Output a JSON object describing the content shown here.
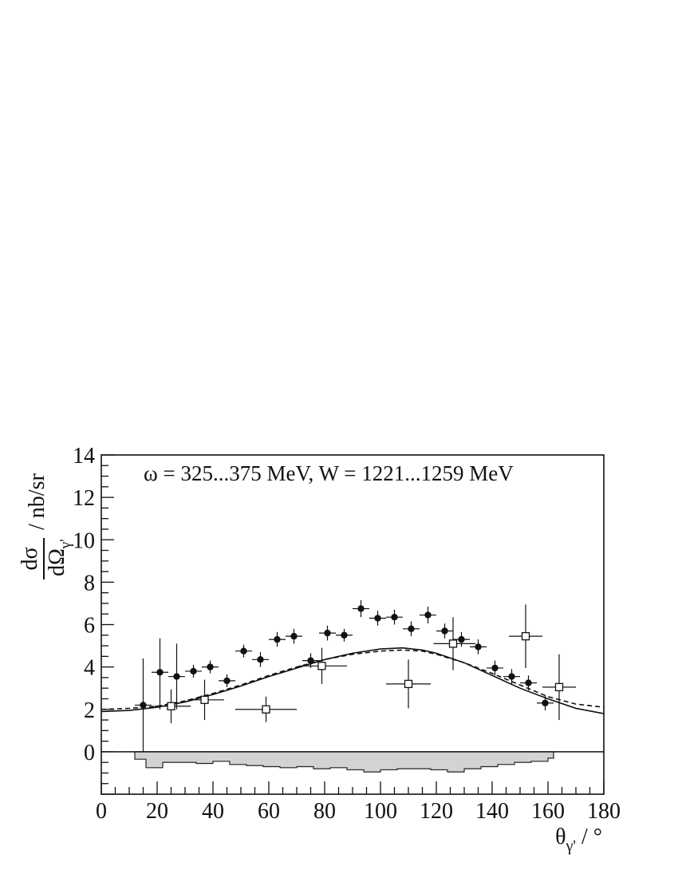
{
  "chart_data": {
    "type": "scatter",
    "annotation": "ω = 325...375 MeV, W = 1221...1259 MeV",
    "xlabel": "θγ' / °",
    "ylabel": "dσ/dΩγ' / nb/sr",
    "xlabel_parts": {
      "main": "θ",
      "sub": "γ'",
      "unit": " / °"
    },
    "ylabel_parts": {
      "num": "dσ",
      "den": "dΩ",
      "den_sub": "γ'",
      "unit": " / nb/sr"
    },
    "xlim": [
      0,
      180
    ],
    "ylim": [
      -2,
      14
    ],
    "x_ticks": [
      0,
      20,
      40,
      60,
      80,
      100,
      120,
      140,
      160,
      180
    ],
    "y_ticks": [
      0,
      2,
      4,
      6,
      8,
      10,
      12,
      14
    ],
    "grid": false,
    "series": [
      {
        "marker": "filled-circle",
        "points": [
          {
            "x": 15,
            "y": 2.2,
            "ylo": 0.0,
            "yhi": 4.4
          },
          {
            "x": 21,
            "y": 3.75,
            "ylo": 2.0,
            "yhi": 5.35
          },
          {
            "x": 27,
            "y": 3.55,
            "ylo": 2.0,
            "yhi": 5.1
          },
          {
            "x": 33,
            "y": 3.8,
            "ylo": 3.5,
            "yhi": 4.1
          },
          {
            "x": 39,
            "y": 4.0,
            "ylo": 3.7,
            "yhi": 4.3
          },
          {
            "x": 45,
            "y": 3.35,
            "ylo": 3.05,
            "yhi": 3.65
          },
          {
            "x": 51,
            "y": 4.75,
            "ylo": 4.45,
            "yhi": 5.05
          },
          {
            "x": 57,
            "y": 4.35,
            "ylo": 4.0,
            "yhi": 4.7
          },
          {
            "x": 63,
            "y": 5.3,
            "ylo": 4.95,
            "yhi": 5.65
          },
          {
            "x": 69,
            "y": 5.45,
            "ylo": 5.1,
            "yhi": 5.8
          },
          {
            "x": 75,
            "y": 4.3,
            "ylo": 3.95,
            "yhi": 4.65
          },
          {
            "x": 81,
            "y": 5.6,
            "ylo": 5.25,
            "yhi": 5.95
          },
          {
            "x": 87,
            "y": 5.5,
            "ylo": 5.2,
            "yhi": 5.8
          },
          {
            "x": 93,
            "y": 6.75,
            "ylo": 6.35,
            "yhi": 7.15
          },
          {
            "x": 99,
            "y": 6.3,
            "ylo": 5.95,
            "yhi": 6.65
          },
          {
            "x": 105,
            "y": 6.35,
            "ylo": 6.0,
            "yhi": 6.7
          },
          {
            "x": 111,
            "y": 5.8,
            "ylo": 5.45,
            "yhi": 6.15
          },
          {
            "x": 117,
            "y": 6.45,
            "ylo": 6.05,
            "yhi": 6.85
          },
          {
            "x": 123,
            "y": 5.7,
            "ylo": 5.35,
            "yhi": 6.05
          },
          {
            "x": 129,
            "y": 5.3,
            "ylo": 4.95,
            "yhi": 5.65
          },
          {
            "x": 135,
            "y": 4.95,
            "ylo": 4.6,
            "yhi": 5.3
          },
          {
            "x": 141,
            "y": 3.95,
            "ylo": 3.6,
            "yhi": 4.3
          },
          {
            "x": 147,
            "y": 3.55,
            "ylo": 3.2,
            "yhi": 3.9
          },
          {
            "x": 153,
            "y": 3.25,
            "ylo": 2.9,
            "yhi": 3.6
          },
          {
            "x": 159,
            "y": 2.3,
            "ylo": 1.95,
            "yhi": 2.65
          }
        ]
      },
      {
        "marker": "open-square",
        "points": [
          {
            "x": 25,
            "y": 2.15,
            "xlo": 19,
            "xhi": 32,
            "ylo": 1.35,
            "yhi": 2.95
          },
          {
            "x": 37,
            "y": 2.45,
            "xlo": 31,
            "xhi": 44,
            "ylo": 1.5,
            "yhi": 3.4
          },
          {
            "x": 59,
            "y": 2.0,
            "xlo": 48,
            "xhi": 70,
            "ylo": 1.4,
            "yhi": 2.6
          },
          {
            "x": 79,
            "y": 4.05,
            "xlo": 71,
            "xhi": 88,
            "ylo": 3.2,
            "yhi": 4.9
          },
          {
            "x": 110,
            "y": 3.2,
            "xlo": 102,
            "xhi": 118,
            "ylo": 2.05,
            "yhi": 4.35
          },
          {
            "x": 126,
            "y": 5.1,
            "xlo": 119,
            "xhi": 134,
            "ylo": 3.85,
            "yhi": 6.35
          },
          {
            "x": 152,
            "y": 5.45,
            "xlo": 146,
            "xhi": 158,
            "ylo": 3.95,
            "yhi": 6.95
          },
          {
            "x": 164,
            "y": 3.05,
            "xlo": 158,
            "xhi": 170,
            "ylo": 1.5,
            "yhi": 4.6
          }
        ]
      }
    ],
    "curves": [
      {
        "style": "solid",
        "x": [
          0,
          10,
          20,
          30,
          40,
          50,
          60,
          70,
          80,
          90,
          100,
          108,
          115,
          120,
          130,
          140,
          150,
          160,
          170,
          180
        ],
        "y": [
          1.9,
          1.95,
          2.1,
          2.35,
          2.7,
          3.1,
          3.55,
          3.95,
          4.35,
          4.65,
          4.85,
          4.9,
          4.8,
          4.65,
          4.2,
          3.6,
          3.0,
          2.5,
          2.05,
          1.8
        ]
      },
      {
        "style": "dashed",
        "x": [
          0,
          10,
          20,
          30,
          40,
          50,
          60,
          70,
          80,
          90,
          100,
          108,
          115,
          120,
          130,
          140,
          150,
          160,
          170,
          180
        ],
        "y": [
          2.0,
          2.05,
          2.15,
          2.4,
          2.75,
          3.15,
          3.6,
          4.0,
          4.35,
          4.6,
          4.75,
          4.8,
          4.75,
          4.6,
          4.2,
          3.7,
          3.15,
          2.6,
          2.25,
          2.1
        ]
      }
    ],
    "systematic_band": {
      "fill": "#d3d3d3",
      "edges": [
        12,
        16,
        22,
        28,
        34,
        40,
        46,
        52,
        58,
        64,
        70,
        76,
        82,
        88,
        94,
        100,
        106,
        112,
        118,
        124,
        130,
        136,
        142,
        148,
        154,
        160,
        162
      ],
      "values": [
        -0.35,
        -0.75,
        -0.5,
        -0.5,
        -0.55,
        -0.45,
        -0.6,
        -0.65,
        -0.7,
        -0.75,
        -0.7,
        -0.8,
        -0.75,
        -0.85,
        -0.95,
        -0.85,
        -0.8,
        -0.8,
        -0.85,
        -0.95,
        -0.8,
        -0.7,
        -0.6,
        -0.5,
        -0.45,
        -0.3
      ]
    }
  }
}
